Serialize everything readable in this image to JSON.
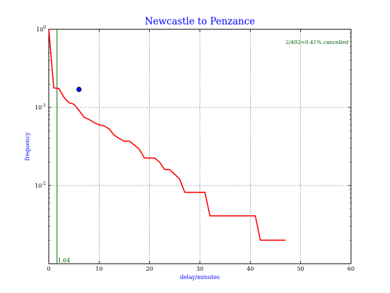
{
  "chart_data": {
    "type": "line",
    "title": "Newcastle to Penzance",
    "xlabel": "delay/minutes",
    "ylabel": "frequency",
    "xlim": [
      0,
      60
    ],
    "ylim": [
      0.001,
      1
    ],
    "y_scale": "log",
    "grid": true,
    "x_ticks": [
      {
        "value": 0,
        "label": "0"
      },
      {
        "value": 10,
        "label": "10"
      },
      {
        "value": 20,
        "label": "20"
      },
      {
        "value": 30,
        "label": "30"
      },
      {
        "value": 40,
        "label": "40"
      },
      {
        "value": 50,
        "label": "50"
      },
      {
        "value": 60,
        "label": "60"
      }
    ],
    "y_ticks": [
      {
        "value": 1,
        "base": "10",
        "exp": "0"
      },
      {
        "value": 0.1,
        "base": "10",
        "exp": "-1"
      },
      {
        "value": 0.01,
        "base": "10",
        "exp": "-2"
      }
    ],
    "series": [
      {
        "color": "#ff0000",
        "x": [
          0,
          1,
          2,
          3,
          4,
          5,
          6,
          7,
          8,
          9,
          10,
          11,
          12,
          13,
          14,
          15,
          16,
          17,
          18,
          19,
          20,
          21,
          22,
          23,
          24,
          25,
          26,
          27,
          28,
          29,
          30,
          31,
          32,
          33,
          34,
          35,
          36,
          37,
          38,
          39,
          40,
          41,
          42,
          43,
          44,
          45,
          46,
          47
        ],
        "y": [
          1.0,
          0.178,
          0.175,
          0.135,
          0.115,
          0.11,
          0.092,
          0.075,
          0.07,
          0.064,
          0.06,
          0.058,
          0.053,
          0.044,
          0.04,
          0.037,
          0.037,
          0.033,
          0.029,
          0.0225,
          0.0225,
          0.0225,
          0.02,
          0.016,
          0.016,
          0.014,
          0.012,
          0.0082,
          0.0082,
          0.0082,
          0.0082,
          0.0082,
          0.0041,
          0.0041,
          0.0041,
          0.0041,
          0.0041,
          0.0041,
          0.0041,
          0.0041,
          0.0041,
          0.0041,
          0.002,
          0.002,
          0.002,
          0.002,
          0.002,
          0.002
        ]
      }
    ],
    "vline": {
      "x": 1.64,
      "label": "1.64",
      "color": "#006400"
    },
    "point": {
      "x": 6,
      "y": 0.17,
      "color": "#0000ff"
    },
    "annotation": {
      "text": "2/492=0.41% cancelled",
      "x": 47,
      "y": 0.65,
      "color": "#006400"
    },
    "colors": {
      "title": "#0000ff",
      "axis_label": "#0000ff"
    }
  }
}
